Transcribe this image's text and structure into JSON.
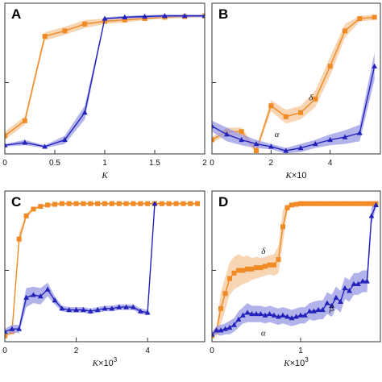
{
  "colors": {
    "orange": "#f08a24",
    "orange_band": "#f6c79a",
    "blue": "#2222bb",
    "blue_band": "#9a9ae6"
  },
  "chart_data": [
    {
      "panel": "A",
      "type": "line",
      "x_label": "K",
      "x_ticks": [
        "0",
        "0.5",
        "1",
        "1.5",
        "2"
      ],
      "x_tick_values": [
        0,
        0.5,
        1,
        1.5,
        2
      ],
      "xlim": [
        0,
        2
      ],
      "ylim": [
        0,
        1
      ],
      "y_tick_values": [
        0.5
      ],
      "annotations": [],
      "series": [
        {
          "marker": "square",
          "color": "orange",
          "x": [
            0,
            0.2,
            0.4,
            0.6,
            0.8,
            1.0,
            1.2,
            1.4,
            1.6,
            1.8,
            2.0
          ],
          "y": [
            0.11,
            0.22,
            0.84,
            0.88,
            0.93,
            0.95,
            0.96,
            0.97,
            0.98,
            0.985,
            0.99
          ],
          "band": [
            0.03,
            0.03,
            0.03,
            0.03,
            0.03,
            0.02,
            0.02,
            0.01,
            0.01,
            0.01,
            0.01
          ]
        },
        {
          "marker": "triangle",
          "color": "blue",
          "x": [
            0,
            0.2,
            0.4,
            0.6,
            0.8,
            1.0,
            1.2,
            1.4,
            1.6,
            1.8,
            2.0
          ],
          "y": [
            0.04,
            0.06,
            0.03,
            0.08,
            0.28,
            0.97,
            0.98,
            0.985,
            0.99,
            0.99,
            0.99
          ],
          "band": [
            0.01,
            0.02,
            0.01,
            0.03,
            0.05,
            0.01,
            0.01,
            0.01,
            0.01,
            0.01,
            0.01
          ]
        }
      ]
    },
    {
      "panel": "B",
      "type": "line",
      "x_label": "K",
      "x_label_suffix": "×10",
      "x_ticks": [
        "0",
        "2",
        "4"
      ],
      "x_tick_values": [
        0,
        2,
        4
      ],
      "xlim": [
        0,
        5.7
      ],
      "ylim": [
        0,
        1
      ],
      "y_tick_values": [
        0.5
      ],
      "annotations": [
        {
          "text": "δ",
          "x": 3.35,
          "y": 0.37
        },
        {
          "text": "α",
          "x": 2.2,
          "y": 0.1
        }
      ],
      "series": [
        {
          "marker": "square",
          "color": "orange",
          "x": [
            0,
            0.5,
            1.0,
            1.5,
            2.0,
            2.5,
            3.0,
            3.5,
            4.0,
            4.5,
            5.0,
            5.5
          ],
          "y": [
            0.08,
            0.14,
            0.14,
            0.0,
            0.33,
            0.25,
            0.28,
            0.38,
            0.62,
            0.88,
            0.97,
            0.98
          ],
          "band": [
            0.02,
            0.03,
            0.03,
            0.02,
            0.04,
            0.05,
            0.05,
            0.06,
            0.07,
            0.05,
            0.02,
            0.02
          ]
        },
        {
          "marker": "triangle",
          "color": "blue",
          "x": [
            0,
            0.5,
            1.0,
            1.5,
            2.0,
            2.5,
            3.0,
            3.5,
            4.0,
            4.5,
            5.0,
            5.5
          ],
          "y": [
            0.18,
            0.12,
            0.08,
            0.05,
            0.03,
            0.0,
            0.02,
            0.05,
            0.08,
            0.1,
            0.13,
            0.62
          ],
          "band": [
            0.04,
            0.05,
            0.04,
            0.03,
            0.02,
            0.02,
            0.03,
            0.03,
            0.04,
            0.05,
            0.06,
            0.1
          ]
        }
      ]
    },
    {
      "panel": "C",
      "type": "line",
      "x_label": "K",
      "x_label_suffix": "×10",
      "x_label_sup": "3",
      "x_ticks": [
        "0",
        "2",
        "4"
      ],
      "x_tick_values": [
        0,
        2,
        4
      ],
      "xlim": [
        0,
        5.6
      ],
      "ylim": [
        0,
        1
      ],
      "y_tick_values": [
        0.5
      ],
      "annotations": [],
      "series": [
        {
          "marker": "square",
          "color": "orange",
          "x": [
            0,
            0.2,
            0.4,
            0.6,
            0.8,
            1.0,
            1.2,
            1.4,
            1.6,
            1.8,
            2.0,
            2.2,
            2.4,
            2.6,
            2.8,
            3.0,
            3.2,
            3.4,
            3.6,
            3.8,
            4.0,
            4.2,
            4.4,
            4.6,
            4.8,
            5.0,
            5.2,
            5.4
          ],
          "y": [
            0.02,
            0.05,
            0.73,
            0.9,
            0.95,
            0.97,
            0.98,
            0.985,
            0.99,
            0.99,
            0.99,
            0.99,
            0.99,
            0.99,
            0.99,
            0.99,
            0.99,
            0.99,
            0.99,
            0.99,
            0.99,
            0.99,
            0.99,
            0.99,
            0.99,
            0.99,
            0.99,
            0.99
          ],
          "band": [
            0.01,
            0.02,
            0.05,
            0.02,
            0.01,
            0.01,
            0.01,
            0.01,
            0.01,
            0.01,
            0.01,
            0.01,
            0.01,
            0.01,
            0.01,
            0.01,
            0.01,
            0.01,
            0.01,
            0.01,
            0.01,
            0.01,
            0.01,
            0.01,
            0.01,
            0.01,
            0.01,
            0.01
          ]
        },
        {
          "marker": "triangle",
          "color": "blue",
          "x": [
            0,
            0.2,
            0.4,
            0.6,
            0.8,
            1.0,
            1.2,
            1.4,
            1.6,
            1.8,
            2.0,
            2.2,
            2.4,
            2.6,
            2.8,
            3.0,
            3.2,
            3.4,
            3.6,
            3.8,
            4.0,
            4.2
          ],
          "y": [
            0.05,
            0.07,
            0.07,
            0.3,
            0.32,
            0.31,
            0.36,
            0.28,
            0.22,
            0.21,
            0.21,
            0.21,
            0.2,
            0.21,
            0.22,
            0.22,
            0.23,
            0.23,
            0.23,
            0.2,
            0.19,
            0.99
          ],
          "band": [
            0.02,
            0.03,
            0.03,
            0.07,
            0.06,
            0.06,
            0.05,
            0.03,
            0.02,
            0.02,
            0.02,
            0.02,
            0.02,
            0.02,
            0.02,
            0.02,
            0.02,
            0.02,
            0.02,
            0.02,
            0.02,
            0.01
          ]
        }
      ]
    },
    {
      "panel": "D",
      "type": "line",
      "x_label": "K",
      "x_label_suffix": "×10",
      "x_label_sup": "3",
      "x_ticks": [
        "0",
        "1"
      ],
      "x_tick_values": [
        0,
        1
      ],
      "xlim": [
        0,
        1.9
      ],
      "ylim": [
        0,
        1
      ],
      "y_tick_values": [
        0.5
      ],
      "annotations": [
        {
          "text": "δ",
          "x": 0.58,
          "y": 0.62
        },
        {
          "text": "β",
          "x": 1.35,
          "y": 0.2
        },
        {
          "text": "α",
          "x": 0.58,
          "y": 0.02
        }
      ],
      "series": [
        {
          "marker": "square",
          "color": "orange",
          "x": [
            0,
            0.05,
            0.1,
            0.15,
            0.2,
            0.25,
            0.3,
            0.35,
            0.4,
            0.45,
            0.5,
            0.55,
            0.6,
            0.65,
            0.7,
            0.75,
            0.8,
            0.85,
            0.9,
            0.95,
            1.0,
            1.05,
            1.1,
            1.15,
            1.2,
            1.25,
            1.3,
            1.35,
            1.4,
            1.45,
            1.5,
            1.55,
            1.6,
            1.65,
            1.7,
            1.75,
            1.8,
            1.85
          ],
          "y": [
            0.02,
            0.05,
            0.22,
            0.33,
            0.44,
            0.48,
            0.5,
            0.5,
            0.51,
            0.51,
            0.52,
            0.52,
            0.53,
            0.54,
            0.54,
            0.58,
            0.82,
            0.96,
            0.98,
            0.985,
            0.99,
            0.99,
            0.99,
            0.99,
            0.99,
            0.99,
            0.99,
            0.99,
            0.99,
            0.99,
            0.99,
            0.99,
            0.99,
            0.99,
            0.99,
            0.99,
            0.99,
            0.99
          ],
          "band": [
            0.01,
            0.03,
            0.12,
            0.12,
            0.12,
            0.12,
            0.12,
            0.1,
            0.1,
            0.08,
            0.08,
            0.07,
            0.07,
            0.07,
            0.08,
            0.1,
            0.12,
            0.03,
            0.01,
            0.01,
            0.01,
            0.01,
            0.01,
            0.01,
            0.01,
            0.01,
            0.01,
            0.01,
            0.01,
            0.01,
            0.01,
            0.01,
            0.01,
            0.01,
            0.01,
            0.01,
            0.01,
            0.01
          ]
        },
        {
          "marker": "triangle",
          "color": "blue",
          "x": [
            0,
            0.05,
            0.1,
            0.15,
            0.2,
            0.25,
            0.3,
            0.35,
            0.4,
            0.45,
            0.5,
            0.55,
            0.6,
            0.65,
            0.7,
            0.75,
            0.8,
            0.85,
            0.9,
            0.95,
            1.0,
            1.05,
            1.1,
            1.15,
            1.2,
            1.25,
            1.3,
            1.35,
            1.4,
            1.45,
            1.5,
            1.55,
            1.6,
            1.65,
            1.7,
            1.75,
            1.8,
            1.85
          ],
          "y": [
            0.03,
            0.06,
            0.06,
            0.07,
            0.08,
            0.1,
            0.14,
            0.17,
            0.19,
            0.18,
            0.18,
            0.18,
            0.17,
            0.18,
            0.17,
            0.16,
            0.17,
            0.16,
            0.15,
            0.16,
            0.17,
            0.17,
            0.2,
            0.2,
            0.21,
            0.21,
            0.26,
            0.24,
            0.3,
            0.27,
            0.37,
            0.35,
            0.4,
            0.4,
            0.42,
            0.42,
            0.9,
            0.98
          ],
          "band": [
            0.02,
            0.03,
            0.04,
            0.04,
            0.05,
            0.05,
            0.06,
            0.06,
            0.07,
            0.06,
            0.06,
            0.06,
            0.06,
            0.06,
            0.06,
            0.06,
            0.06,
            0.06,
            0.06,
            0.06,
            0.06,
            0.06,
            0.06,
            0.07,
            0.07,
            0.07,
            0.08,
            0.08,
            0.08,
            0.08,
            0.08,
            0.08,
            0.08,
            0.08,
            0.08,
            0.08,
            0.06,
            0.02
          ]
        }
      ]
    }
  ]
}
